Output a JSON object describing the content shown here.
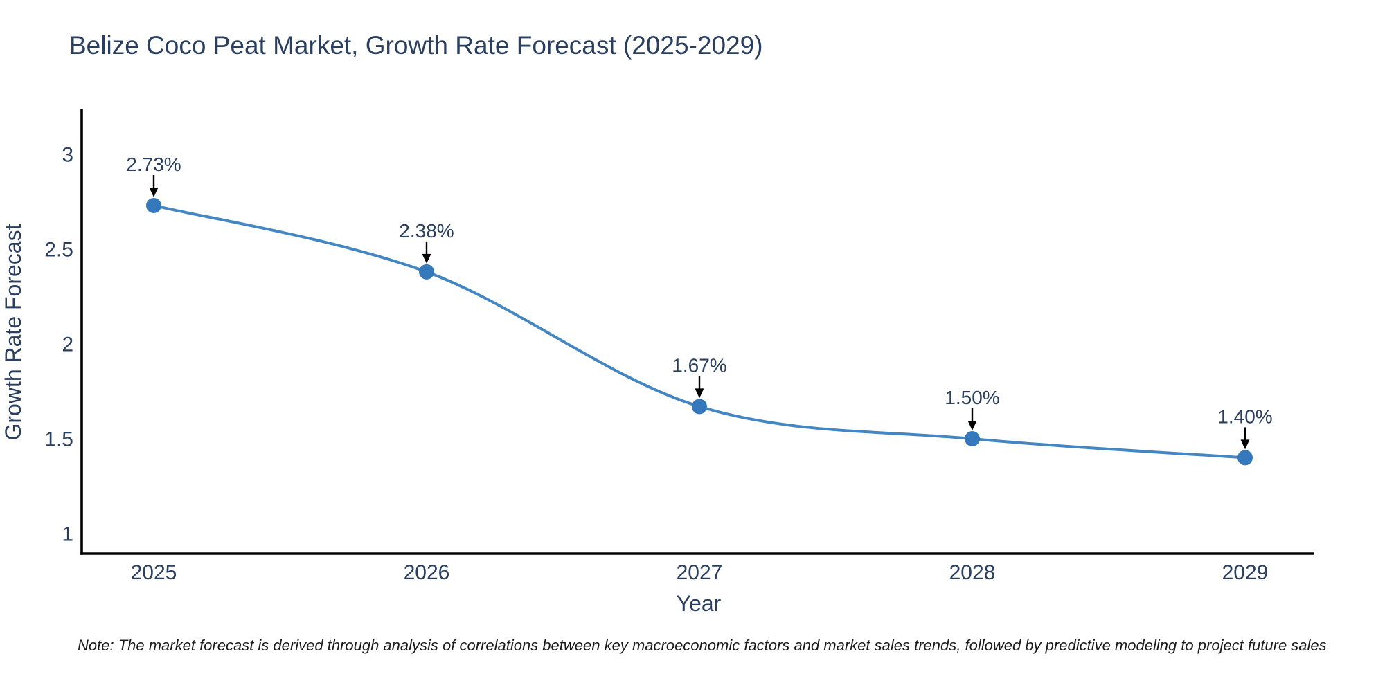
{
  "note": "Note: The market forecast is derived through analysis of correlations between key macroeconomic factors and market sales trends, followed by predictive modeling to project future sales",
  "chart_data": {
    "type": "line",
    "title": "Belize Coco Peat Market, Growth Rate Forecast (2025-2029)",
    "xlabel": "Year",
    "ylabel": "Growth Rate Forecast",
    "x": [
      2025,
      2026,
      2027,
      2028,
      2029
    ],
    "series": [
      {
        "name": "Growth Rate Forecast",
        "values": [
          2.73,
          2.38,
          1.67,
          1.5,
          1.4
        ]
      }
    ],
    "point_labels": [
      "2.73%",
      "2.38%",
      "1.67%",
      "1.50%",
      "1.40%"
    ],
    "yticks": [
      1,
      1.5,
      2,
      2.5,
      3
    ],
    "ylim": [
      0.89,
      3.23
    ],
    "xlim": [
      2024.73,
      2029.25
    ],
    "line_shape": "spline",
    "grid": false,
    "legend": "none",
    "line_color": "#4486c1",
    "marker_color": "#3579bc",
    "arrow_color": "#000000",
    "text_color": "#2a3f5f",
    "line_width": 4,
    "marker_radius": 11
  }
}
